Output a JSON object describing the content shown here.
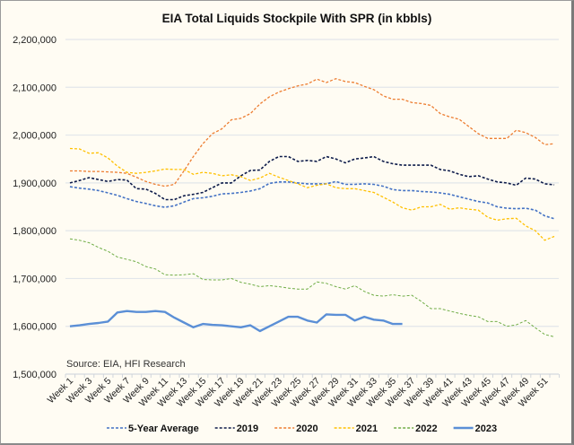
{
  "chart_data": {
    "type": "line",
    "title": "EIA Total Liquids Stockpile With SPR (in kbbls)",
    "annotation": "Source: EIA, HFI Research",
    "xlabel": "",
    "ylabel": "",
    "ylim": [
      1500000,
      2200000
    ],
    "yticks": [
      "1,500,000",
      "1,600,000",
      "1,700,000",
      "1,800,000",
      "1,900,000",
      "2,000,000",
      "2,100,000",
      "2,200,000"
    ],
    "ytick_values": [
      1500000,
      1600000,
      1700000,
      1800000,
      1900000,
      2000000,
      2100000,
      2200000
    ],
    "grid": true,
    "legend_position": "bottom",
    "x_label_prefix": "Week ",
    "x_tick_labels": [
      "Week 1",
      "Week 3",
      "Week 5",
      "Week 7",
      "Week 9",
      "Week 11",
      "Week 13",
      "Week 15",
      "Week 17",
      "Week 19",
      "Week 21",
      "Week 23",
      "Week 25",
      "Week 27",
      "Week 29",
      "Week 31",
      "Week 33",
      "Week 35",
      "Week 37",
      "Week 39",
      "Week 41",
      "Week 43",
      "Week 45",
      "Week 47",
      "Week 49",
      "Week 51"
    ],
    "num_weeks": 52,
    "series": [
      {
        "name": "5-Year Average",
        "color": "#4472c4",
        "style": "dashed",
        "width": 1.6,
        "values": [
          1892,
          1889,
          1887,
          1884,
          1879,
          1874,
          1867,
          1861,
          1857,
          1852,
          1849,
          1852,
          1860,
          1867,
          1869,
          1872,
          1877,
          1878,
          1880,
          1883,
          1888,
          1899,
          1902,
          1902,
          1900,
          1898,
          1898,
          1898,
          1903,
          1897,
          1897,
          1898,
          1897,
          1893,
          1886,
          1884,
          1884,
          1882,
          1881,
          1879,
          1876,
          1871,
          1866,
          1861,
          1858,
          1850,
          1847,
          1846,
          1847,
          1843,
          1831,
          1825
        ]
      },
      {
        "name": "2019",
        "color": "#0d1b4a",
        "style": "dashed",
        "width": 1.6,
        "values": [
          1900,
          1905,
          1911,
          1907,
          1903,
          1907,
          1906,
          1888,
          1887,
          1878,
          1865,
          1865,
          1873,
          1876,
          1880,
          1890,
          1900,
          1900,
          1915,
          1926,
          1927,
          1945,
          1955,
          1955,
          1945,
          1947,
          1945,
          1955,
          1950,
          1942,
          1950,
          1952,
          1955,
          1945,
          1940,
          1937,
          1937,
          1937,
          1937,
          1928,
          1925,
          1918,
          1913,
          1915,
          1908,
          1902,
          1900,
          1895,
          1910,
          1908,
          1898,
          1896
        ]
      },
      {
        "name": "2020",
        "color": "#ed7d31",
        "style": "dashed",
        "width": 1.3,
        "values": [
          1925,
          1925,
          1924,
          1924,
          1923,
          1922,
          1920,
          1912,
          1903,
          1897,
          1893,
          1897,
          1925,
          1955,
          1982,
          2003,
          2013,
          2032,
          2035,
          2045,
          2065,
          2080,
          2090,
          2097,
          2103,
          2107,
          2117,
          2110,
          2118,
          2112,
          2110,
          2102,
          2095,
          2082,
          2075,
          2075,
          2068,
          2066,
          2062,
          2045,
          2038,
          2033,
          2018,
          2003,
          1993,
          1993,
          1993,
          2010,
          2005,
          1995,
          1980,
          1982
        ]
      },
      {
        "name": "2021",
        "color": "#ffc000",
        "style": "dashed",
        "width": 1.3,
        "values": [
          1972,
          1971,
          1962,
          1963,
          1952,
          1935,
          1922,
          1920,
          1922,
          1925,
          1929,
          1928,
          1928,
          1918,
          1922,
          1920,
          1915,
          1917,
          1913,
          1905,
          1910,
          1920,
          1912,
          1905,
          1898,
          1890,
          1895,
          1898,
          1890,
          1888,
          1888,
          1884,
          1880,
          1870,
          1860,
          1848,
          1843,
          1850,
          1850,
          1855,
          1845,
          1848,
          1845,
          1843,
          1828,
          1822,
          1825,
          1826,
          1810,
          1800,
          1780,
          1788
        ]
      },
      {
        "name": "2022",
        "color": "#70ad47",
        "style": "dashed",
        "width": 1.0,
        "values": [
          1783,
          1780,
          1775,
          1765,
          1757,
          1745,
          1740,
          1735,
          1725,
          1720,
          1708,
          1707,
          1708,
          1710,
          1698,
          1697,
          1697,
          1700,
          1692,
          1688,
          1683,
          1685,
          1683,
          1680,
          1678,
          1678,
          1693,
          1690,
          1683,
          1678,
          1685,
          1673,
          1665,
          1663,
          1666,
          1663,
          1665,
          1652,
          1637,
          1637,
          1632,
          1627,
          1623,
          1620,
          1610,
          1610,
          1600,
          1603,
          1612,
          1597,
          1583,
          1578
        ]
      },
      {
        "name": "2023",
        "color": "#5b8fd6",
        "style": "solid",
        "width": 2.4,
        "values": [
          1600,
          1602,
          1605,
          1607,
          1610,
          1629,
          1632,
          1630,
          1630,
          1632,
          1630,
          1618,
          1608,
          1598,
          1605,
          1603,
          1602,
          1600,
          1598,
          1602,
          1590,
          1600,
          1610,
          1620,
          1620,
          1612,
          1608,
          1625,
          1624,
          1624,
          1612,
          1620,
          1614,
          1612,
          1605,
          1605
        ]
      }
    ],
    "value_unit_multiplier": 1000
  }
}
